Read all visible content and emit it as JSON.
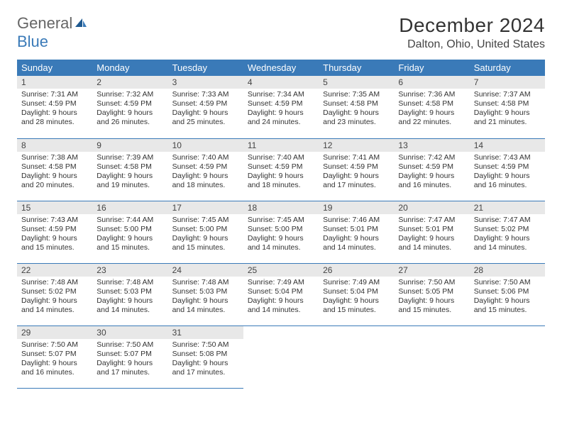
{
  "brand": {
    "name_a": "General",
    "name_b": "Blue"
  },
  "title": "December 2024",
  "location": "Dalton, Ohio, United States",
  "colors": {
    "header_bg": "#3a7ab8",
    "header_fg": "#ffffff",
    "daynum_bg": "#e8e8e8",
    "border": "#3a7ab8",
    "text": "#333333",
    "logo_gray": "#666666",
    "logo_blue": "#3a7ab8"
  },
  "weekdays": [
    "Sunday",
    "Monday",
    "Tuesday",
    "Wednesday",
    "Thursday",
    "Friday",
    "Saturday"
  ],
  "weeks": [
    [
      {
        "n": "1",
        "sr": "Sunrise: 7:31 AM",
        "ss": "Sunset: 4:59 PM",
        "dl1": "Daylight: 9 hours",
        "dl2": "and 28 minutes."
      },
      {
        "n": "2",
        "sr": "Sunrise: 7:32 AM",
        "ss": "Sunset: 4:59 PM",
        "dl1": "Daylight: 9 hours",
        "dl2": "and 26 minutes."
      },
      {
        "n": "3",
        "sr": "Sunrise: 7:33 AM",
        "ss": "Sunset: 4:59 PM",
        "dl1": "Daylight: 9 hours",
        "dl2": "and 25 minutes."
      },
      {
        "n": "4",
        "sr": "Sunrise: 7:34 AM",
        "ss": "Sunset: 4:59 PM",
        "dl1": "Daylight: 9 hours",
        "dl2": "and 24 minutes."
      },
      {
        "n": "5",
        "sr": "Sunrise: 7:35 AM",
        "ss": "Sunset: 4:58 PM",
        "dl1": "Daylight: 9 hours",
        "dl2": "and 23 minutes."
      },
      {
        "n": "6",
        "sr": "Sunrise: 7:36 AM",
        "ss": "Sunset: 4:58 PM",
        "dl1": "Daylight: 9 hours",
        "dl2": "and 22 minutes."
      },
      {
        "n": "7",
        "sr": "Sunrise: 7:37 AM",
        "ss": "Sunset: 4:58 PM",
        "dl1": "Daylight: 9 hours",
        "dl2": "and 21 minutes."
      }
    ],
    [
      {
        "n": "8",
        "sr": "Sunrise: 7:38 AM",
        "ss": "Sunset: 4:58 PM",
        "dl1": "Daylight: 9 hours",
        "dl2": "and 20 minutes."
      },
      {
        "n": "9",
        "sr": "Sunrise: 7:39 AM",
        "ss": "Sunset: 4:58 PM",
        "dl1": "Daylight: 9 hours",
        "dl2": "and 19 minutes."
      },
      {
        "n": "10",
        "sr": "Sunrise: 7:40 AM",
        "ss": "Sunset: 4:59 PM",
        "dl1": "Daylight: 9 hours",
        "dl2": "and 18 minutes."
      },
      {
        "n": "11",
        "sr": "Sunrise: 7:40 AM",
        "ss": "Sunset: 4:59 PM",
        "dl1": "Daylight: 9 hours",
        "dl2": "and 18 minutes."
      },
      {
        "n": "12",
        "sr": "Sunrise: 7:41 AM",
        "ss": "Sunset: 4:59 PM",
        "dl1": "Daylight: 9 hours",
        "dl2": "and 17 minutes."
      },
      {
        "n": "13",
        "sr": "Sunrise: 7:42 AM",
        "ss": "Sunset: 4:59 PM",
        "dl1": "Daylight: 9 hours",
        "dl2": "and 16 minutes."
      },
      {
        "n": "14",
        "sr": "Sunrise: 7:43 AM",
        "ss": "Sunset: 4:59 PM",
        "dl1": "Daylight: 9 hours",
        "dl2": "and 16 minutes."
      }
    ],
    [
      {
        "n": "15",
        "sr": "Sunrise: 7:43 AM",
        "ss": "Sunset: 4:59 PM",
        "dl1": "Daylight: 9 hours",
        "dl2": "and 15 minutes."
      },
      {
        "n": "16",
        "sr": "Sunrise: 7:44 AM",
        "ss": "Sunset: 5:00 PM",
        "dl1": "Daylight: 9 hours",
        "dl2": "and 15 minutes."
      },
      {
        "n": "17",
        "sr": "Sunrise: 7:45 AM",
        "ss": "Sunset: 5:00 PM",
        "dl1": "Daylight: 9 hours",
        "dl2": "and 15 minutes."
      },
      {
        "n": "18",
        "sr": "Sunrise: 7:45 AM",
        "ss": "Sunset: 5:00 PM",
        "dl1": "Daylight: 9 hours",
        "dl2": "and 14 minutes."
      },
      {
        "n": "19",
        "sr": "Sunrise: 7:46 AM",
        "ss": "Sunset: 5:01 PM",
        "dl1": "Daylight: 9 hours",
        "dl2": "and 14 minutes."
      },
      {
        "n": "20",
        "sr": "Sunrise: 7:47 AM",
        "ss": "Sunset: 5:01 PM",
        "dl1": "Daylight: 9 hours",
        "dl2": "and 14 minutes."
      },
      {
        "n": "21",
        "sr": "Sunrise: 7:47 AM",
        "ss": "Sunset: 5:02 PM",
        "dl1": "Daylight: 9 hours",
        "dl2": "and 14 minutes."
      }
    ],
    [
      {
        "n": "22",
        "sr": "Sunrise: 7:48 AM",
        "ss": "Sunset: 5:02 PM",
        "dl1": "Daylight: 9 hours",
        "dl2": "and 14 minutes."
      },
      {
        "n": "23",
        "sr": "Sunrise: 7:48 AM",
        "ss": "Sunset: 5:03 PM",
        "dl1": "Daylight: 9 hours",
        "dl2": "and 14 minutes."
      },
      {
        "n": "24",
        "sr": "Sunrise: 7:48 AM",
        "ss": "Sunset: 5:03 PM",
        "dl1": "Daylight: 9 hours",
        "dl2": "and 14 minutes."
      },
      {
        "n": "25",
        "sr": "Sunrise: 7:49 AM",
        "ss": "Sunset: 5:04 PM",
        "dl1": "Daylight: 9 hours",
        "dl2": "and 14 minutes."
      },
      {
        "n": "26",
        "sr": "Sunrise: 7:49 AM",
        "ss": "Sunset: 5:04 PM",
        "dl1": "Daylight: 9 hours",
        "dl2": "and 15 minutes."
      },
      {
        "n": "27",
        "sr": "Sunrise: 7:50 AM",
        "ss": "Sunset: 5:05 PM",
        "dl1": "Daylight: 9 hours",
        "dl2": "and 15 minutes."
      },
      {
        "n": "28",
        "sr": "Sunrise: 7:50 AM",
        "ss": "Sunset: 5:06 PM",
        "dl1": "Daylight: 9 hours",
        "dl2": "and 15 minutes."
      }
    ],
    [
      {
        "n": "29",
        "sr": "Sunrise: 7:50 AM",
        "ss": "Sunset: 5:07 PM",
        "dl1": "Daylight: 9 hours",
        "dl2": "and 16 minutes."
      },
      {
        "n": "30",
        "sr": "Sunrise: 7:50 AM",
        "ss": "Sunset: 5:07 PM",
        "dl1": "Daylight: 9 hours",
        "dl2": "and 17 minutes."
      },
      {
        "n": "31",
        "sr": "Sunrise: 7:50 AM",
        "ss": "Sunset: 5:08 PM",
        "dl1": "Daylight: 9 hours",
        "dl2": "and 17 minutes."
      },
      null,
      null,
      null,
      null
    ]
  ]
}
